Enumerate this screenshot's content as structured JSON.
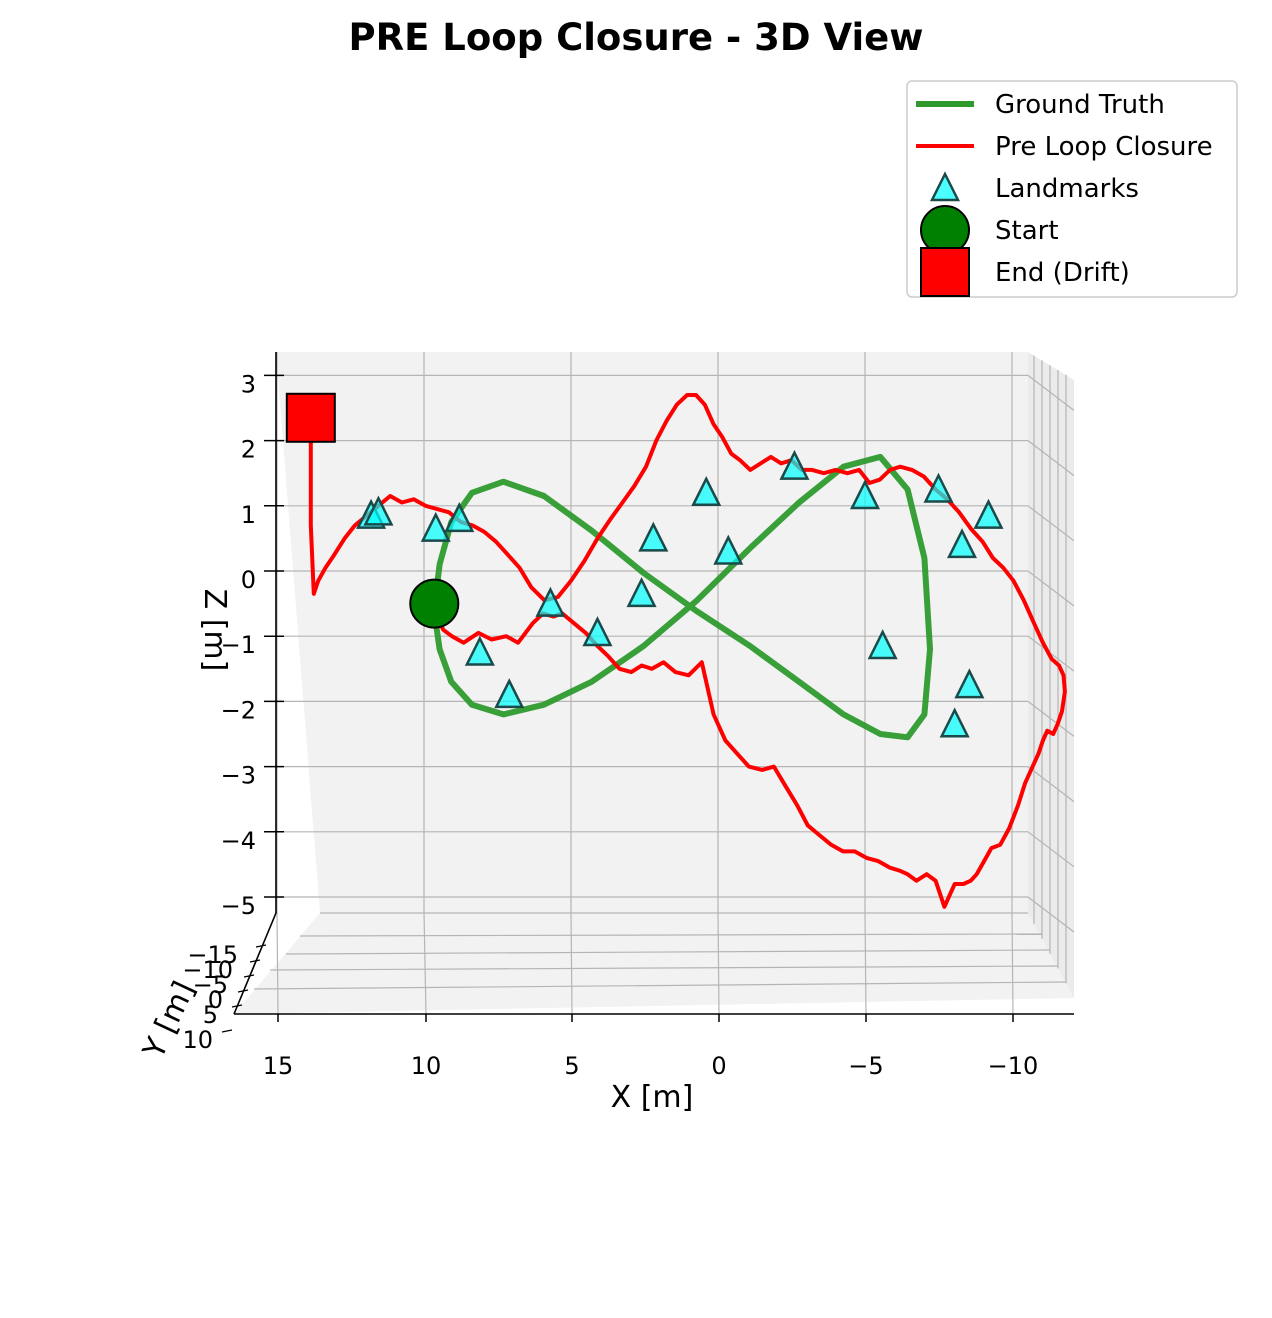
{
  "chart_data": {
    "type": "line",
    "title": "PRE Loop Closure - 3D View",
    "xlabel": "X [m]",
    "ylabel": "Y [m]",
    "zlabel": "Z [m]",
    "xlim": [
      17,
      -12
    ],
    "zlim": [
      -5.3,
      3.3
    ],
    "x_ticks": [
      "15",
      "10",
      "5",
      "0",
      "−5",
      "−10"
    ],
    "y_ticks": [
      "−15",
      "−10",
      "−5",
      "0",
      "5",
      "10"
    ],
    "z_ticks": [
      "3",
      "2",
      "1",
      "0",
      "−1",
      "−2",
      "−3",
      "−4",
      "−5"
    ],
    "grid": true,
    "legend_position": "top-right",
    "legend": [
      {
        "label": "Ground Truth",
        "kind": "line",
        "color": "#2e9a2e"
      },
      {
        "label": "Pre Loop Closure",
        "kind": "line",
        "color": "#ff0000"
      },
      {
        "label": "Landmarks",
        "kind": "triangle",
        "color": "#00ffff"
      },
      {
        "label": "Start",
        "kind": "circle",
        "color": "#008000"
      },
      {
        "label": "End (Drift)",
        "kind": "square",
        "color": "#ff0000"
      }
    ],
    "series": [
      {
        "name": "Ground Truth",
        "color": "#2e9a2e",
        "x": [
          9.66,
          9.47,
          9.07,
          8.37,
          7.3,
          5.92,
          4.3,
          2.53,
          0.71,
          -1.09,
          -2.76,
          -4.27,
          -5.52,
          -6.45,
          -7.02,
          -7.21,
          -7.02,
          -6.45,
          -5.52,
          -4.27,
          -2.76,
          -1.09,
          0.71,
          2.53,
          4.3,
          5.92,
          7.3,
          8.37,
          9.07,
          9.47,
          9.66
        ],
        "z": [
          -0.6,
          0.1,
          0.75,
          1.2,
          1.37,
          1.15,
          0.62,
          -0.03,
          -0.62,
          -1.15,
          -1.7,
          -2.2,
          -2.5,
          -2.55,
          -2.2,
          -1.2,
          0.2,
          1.25,
          1.75,
          1.6,
          1.05,
          0.35,
          -0.45,
          -1.15,
          -1.7,
          -2.05,
          -2.2,
          -2.05,
          -1.7,
          -1.2,
          -0.6
        ]
      },
      {
        "name": "Pre Loop Closure",
        "color": "#ff0000",
        "x": [
          9.65,
          9.35,
          9.05,
          8.65,
          8.15,
          7.7,
          7.2,
          6.8,
          6.3,
          5.95,
          5.6,
          5.3,
          4.9,
          4.5,
          4.1,
          3.75,
          3.35,
          2.95,
          2.6,
          2.25,
          1.85,
          1.45,
          1.0,
          0.55,
          0.15,
          -0.25,
          -0.65,
          -1.05,
          -1.5,
          -1.9,
          -2.3,
          -2.7,
          -3.05,
          -3.45,
          -3.85,
          -4.25,
          -4.65,
          -5.05,
          -5.45,
          -5.85,
          -6.2,
          -6.45,
          -6.75,
          -7.1,
          -7.4,
          -7.7,
          -8.05,
          -8.35,
          -8.6,
          -8.8,
          -9.05,
          -9.3,
          -9.6,
          -9.9,
          -10.2,
          -10.45,
          -10.7,
          -10.9,
          -11.05,
          -11.2,
          -11.4,
          -11.55,
          -11.7,
          -11.8,
          -11.75,
          -11.6,
          -11.35,
          -11.05,
          -10.75,
          -10.4,
          -10.05,
          -9.7,
          -9.35,
          -9.0,
          -8.6,
          -8.2,
          -7.8,
          -7.4,
          -7.0,
          -6.6,
          -6.2,
          -5.85,
          -5.5,
          -5.15,
          -4.8,
          -4.4,
          -4.0,
          -3.6,
          -3.2,
          -2.85,
          -2.5,
          -2.15,
          -1.8,
          -1.45,
          -1.1,
          -0.75,
          -0.45,
          -0.15,
          0.15,
          0.45,
          0.75,
          1.05,
          1.4,
          1.75,
          2.1,
          2.45,
          2.85,
          3.25,
          3.65,
          4.1,
          4.55,
          5.0,
          5.45,
          5.9,
          6.35,
          6.75,
          7.15,
          7.55,
          7.95,
          8.35,
          8.75,
          9.15,
          9.55,
          9.95,
          10.35,
          10.75,
          11.15,
          11.55,
          11.95,
          12.35,
          12.7,
          13.05,
          13.35,
          13.6,
          13.75,
          13.85,
          13.85,
          13.85,
          13.85
        ],
        "z": [
          -0.6,
          -0.9,
          -1.0,
          -1.1,
          -0.95,
          -1.05,
          -1.0,
          -1.1,
          -0.8,
          -0.65,
          -0.7,
          -0.65,
          -0.8,
          -0.95,
          -1.15,
          -1.3,
          -1.5,
          -1.55,
          -1.45,
          -1.5,
          -1.4,
          -1.55,
          -1.6,
          -1.4,
          -2.2,
          -2.6,
          -2.8,
          -3.0,
          -3.05,
          -3.0,
          -3.3,
          -3.6,
          -3.9,
          -4.05,
          -4.2,
          -4.3,
          -4.3,
          -4.4,
          -4.45,
          -4.55,
          -4.6,
          -4.65,
          -4.75,
          -4.65,
          -4.75,
          -5.15,
          -4.8,
          -4.8,
          -4.75,
          -4.65,
          -4.45,
          -4.25,
          -4.2,
          -3.95,
          -3.6,
          -3.25,
          -3.0,
          -2.8,
          -2.6,
          -2.45,
          -2.5,
          -2.35,
          -2.15,
          -1.85,
          -1.6,
          -1.45,
          -1.35,
          -1.1,
          -0.8,
          -0.45,
          -0.15,
          0.05,
          0.2,
          0.45,
          0.65,
          0.9,
          1.1,
          1.25,
          1.45,
          1.55,
          1.6,
          1.55,
          1.4,
          1.35,
          1.55,
          1.5,
          1.55,
          1.5,
          1.55,
          1.55,
          1.7,
          1.65,
          1.75,
          1.65,
          1.55,
          1.7,
          1.8,
          2.05,
          2.25,
          2.55,
          2.7,
          2.7,
          2.55,
          2.3,
          2.0,
          1.6,
          1.3,
          1.05,
          0.8,
          0.5,
          0.15,
          -0.15,
          -0.4,
          -0.45,
          -0.25,
          0.05,
          0.25,
          0.45,
          0.6,
          0.7,
          0.75,
          0.9,
          0.95,
          1.0,
          1.1,
          1.05,
          1.15,
          1.0,
          0.85,
          0.7,
          0.5,
          0.25,
          0.05,
          -0.15,
          -0.35,
          0.7,
          1.2,
          1.5,
          2.2
        ]
      }
    ],
    "landmarks": {
      "x": [
        11.8,
        11.55,
        9.6,
        8.8,
        8.1,
        7.1,
        5.7,
        4.1,
        2.6,
        2.2,
        0.4,
        -0.35,
        -2.6,
        -5.0,
        -5.6,
        -7.5,
        -8.05,
        -8.3,
        -8.55,
        -9.2
      ],
      "z": [
        0.85,
        0.9,
        0.65,
        0.8,
        -1.25,
        -1.9,
        -0.5,
        -0.95,
        -0.35,
        0.5,
        1.2,
        0.3,
        1.6,
        1.15,
        -1.15,
        1.25,
        -2.35,
        0.4,
        -1.75,
        0.85
      ]
    },
    "start": {
      "x": 9.65,
      "z": -0.5
    },
    "end": {
      "x": 13.85,
      "z": 2.35
    }
  }
}
